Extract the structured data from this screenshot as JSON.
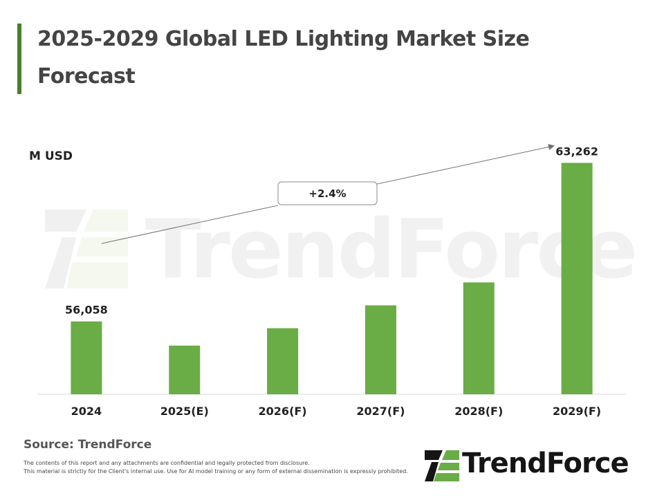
{
  "title": "2025-2029 Global LED Lighting Market Size Forecast",
  "unit_label": "M USD",
  "source": "Source: TrendForce",
  "disclaimer": [
    "The contents of this report and any attachments are confidential and legally protected from disclosure.",
    "This material is strictly for the Client's internal use. Use for AI model training or any form of external dissemination is expressly prohibited."
  ],
  "logo_text": "TrendForce",
  "watermark_text": "TrendForce",
  "colors": {
    "bar": "#6aac45",
    "title_accent": "#4a7f2e",
    "logo_green": "#6aac45"
  },
  "chart_data": {
    "type": "bar",
    "categories": [
      "2024",
      "2025(E)",
      "2026(F)",
      "2027(F)",
      "2028(F)",
      "2029(F)"
    ],
    "values": [
      56058,
      54960,
      55750,
      56790,
      57830,
      63262
    ],
    "data_labels": [
      "56,058",
      "",
      "",
      "",
      "",
      "63,262"
    ],
    "annotation": "+2.4%",
    "ylim": [
      52750,
      64000
    ],
    "grid": false,
    "legend": "none"
  }
}
